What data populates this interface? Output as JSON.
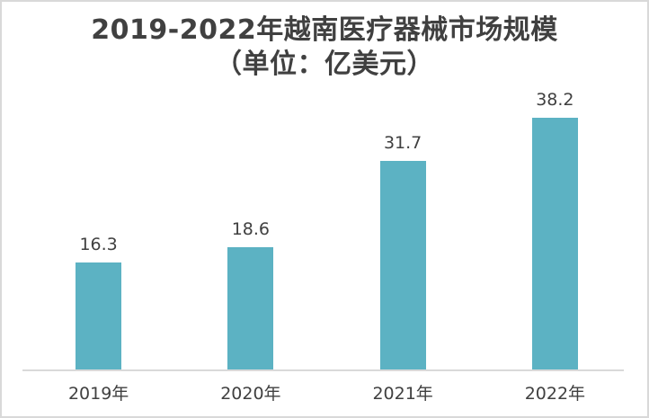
{
  "title": {
    "line1": "2019-2022年越南医疗器械市场规模",
    "line2": "（单位：亿美元）"
  },
  "chart_data": {
    "type": "bar",
    "title": "2019-2022年越南医疗器械市场规模",
    "subtitle": "（单位：亿美元）",
    "categories": [
      "2019年",
      "2020年",
      "2021年",
      "2022年"
    ],
    "values": [
      16.3,
      18.6,
      31.7,
      38.2
    ],
    "data_labels": [
      "16.3",
      "18.6",
      "31.7",
      "38.2"
    ],
    "xlabel": "",
    "ylabel": "",
    "ylim": [
      0,
      41
    ],
    "grid": false,
    "legend": false,
    "colors": {
      "bar": "#5CB2C3",
      "text": "#404040",
      "axis_line": "#D9D9D9",
      "frame_border": "#D9D9D9",
      "background": "#FFFFFF"
    }
  }
}
